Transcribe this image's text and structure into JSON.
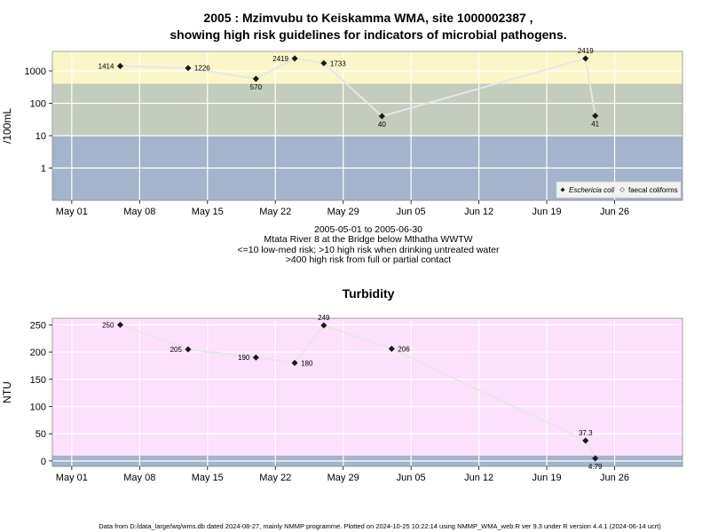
{
  "chart_data": [
    {
      "type": "scatter",
      "title_line1": "2005 : Mzimvubu to Keiskamma WMA, site 1000002387 ,",
      "title_line2": "showing high risk guidelines for indicators of microbial pathogens.",
      "ylabel": "/100mL",
      "y_scale": "log10",
      "ylim": [
        0.1,
        4000
      ],
      "y_ticks": [
        1,
        10,
        100,
        1000
      ],
      "y_tick_labels": [
        "1",
        "10",
        "100",
        "1000"
      ],
      "x_ticks": [
        "2005-05-01",
        "2005-05-08",
        "2005-05-15",
        "2005-05-22",
        "2005-05-29",
        "2005-06-05",
        "2005-06-12",
        "2005-06-19",
        "2005-06-26"
      ],
      "x_tick_labels": [
        "May 01",
        "May 08",
        "May 15",
        "May 22",
        "May 29",
        "Jun 05",
        "Jun 12",
        "Jun 19",
        "Jun 26"
      ],
      "xlim": [
        "2005-04-29",
        "2005-07-03"
      ],
      "grid": true,
      "bands": [
        {
          "from": 0.1,
          "to": 10,
          "color": "#a3b4cc"
        },
        {
          "from": 10,
          "to": 400,
          "color": "#c4ccbe"
        },
        {
          "from": 400,
          "to": 4000,
          "color": "#fbf6c8"
        }
      ],
      "series": [
        {
          "name": "Eschericia coli",
          "marker": "filled-diamond",
          "x": [
            "2005-05-06",
            "2005-05-13",
            "2005-05-20",
            "2005-05-24",
            "2005-05-27",
            "2005-06-02",
            "2005-06-23",
            "2005-06-24"
          ],
          "y": [
            1414,
            1226,
            570,
            2419,
            1733,
            40,
            2419,
            41
          ],
          "labels": [
            "1414",
            "1226",
            "570",
            "2419",
            "1733",
            "40",
            "2419",
            "41"
          ]
        },
        {
          "name": "faecal coliforms",
          "marker": "open-diamond",
          "x": [],
          "y": [],
          "labels": []
        }
      ],
      "legend_position": "bottom-right",
      "below_text": [
        "2005-05-01 to 2005-06-30",
        "Mtata River 8 at the Bridge below Mthatha WWTW",
        "<=10 low-med risk; >10 high risk when drinking untreated water",
        ">400 high risk from full or partial contact"
      ]
    },
    {
      "type": "scatter",
      "title": "Turbidity",
      "ylabel": "NTU",
      "ylim": [
        -10,
        262
      ],
      "y_ticks": [
        0,
        50,
        100,
        150,
        200,
        250
      ],
      "y_tick_labels": [
        "0",
        "50",
        "100",
        "150",
        "200",
        "250"
      ],
      "x_ticks": [
        "2005-05-01",
        "2005-05-08",
        "2005-05-15",
        "2005-05-22",
        "2005-05-29",
        "2005-06-05",
        "2005-06-12",
        "2005-06-19",
        "2005-06-26"
      ],
      "x_tick_labels": [
        "May 01",
        "May 08",
        "May 15",
        "May 22",
        "May 29",
        "Jun 05",
        "Jun 12",
        "Jun 19",
        "Jun 26"
      ],
      "xlim": [
        "2005-04-29",
        "2005-07-03"
      ],
      "grid": true,
      "bands": [
        {
          "from": -10,
          "to": 10,
          "color": "#a3b4cc"
        },
        {
          "from": 10,
          "to": 262,
          "color": "#fde0fb"
        }
      ],
      "series": [
        {
          "marker": "filled-diamond",
          "x": [
            "2005-05-06",
            "2005-05-13",
            "2005-05-20",
            "2005-05-24",
            "2005-05-27",
            "2005-06-03",
            "2005-06-23",
            "2005-06-24"
          ],
          "y": [
            250,
            205,
            190,
            180,
            249,
            206,
            37.3,
            4.79
          ],
          "labels": [
            "250",
            "205",
            "190",
            "180",
            "249",
            "206",
            "37.3",
            "4.79"
          ]
        }
      ]
    }
  ],
  "footer": "Data from D:/data_large/wq/wms.db dated 2024-08-27, mainly NMMP programme. Plotted on 2024-10-25 10:22:14 using NMMP_WMA_web.R ver 9.3 under R version 4.4.1 (2024-06-14 ucrt)"
}
